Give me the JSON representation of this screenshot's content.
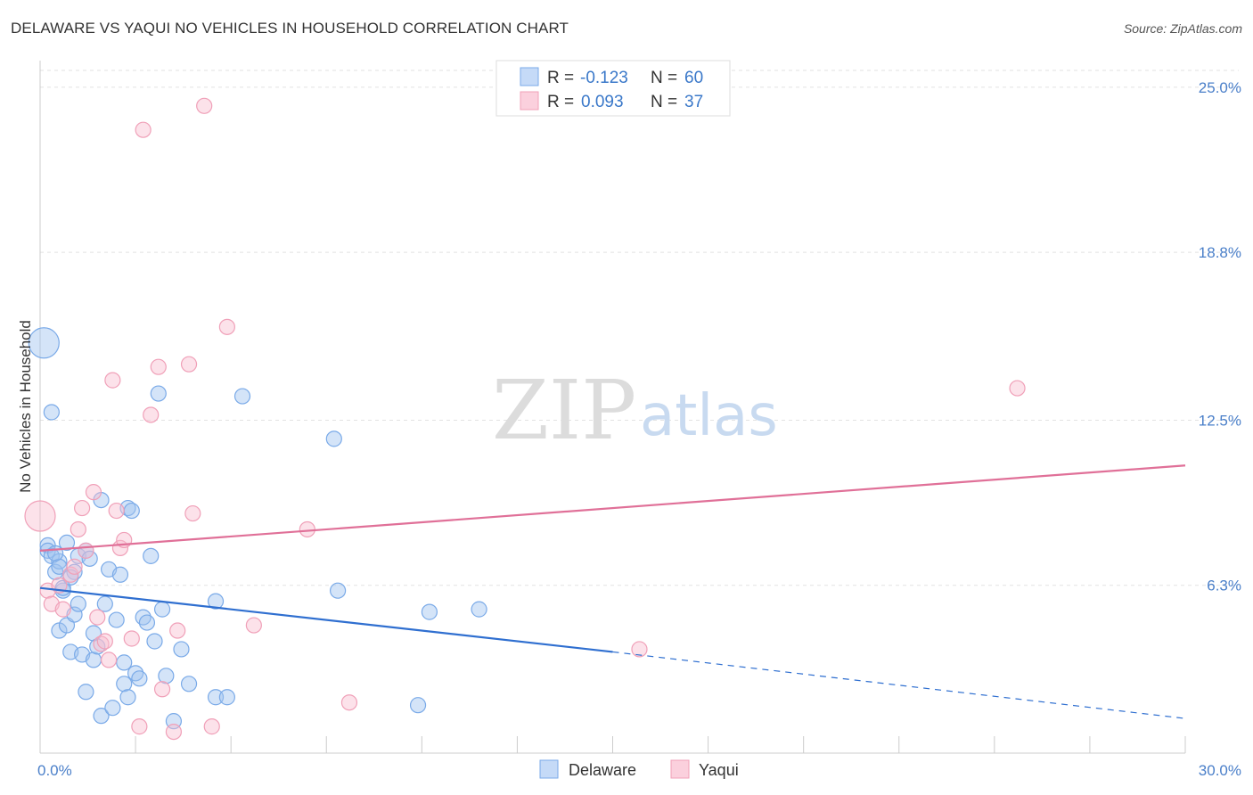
{
  "title": "DELAWARE VS YAQUI NO VEHICLES IN HOUSEHOLD CORRELATION CHART",
  "source": "Source: ZipAtlas.com",
  "watermark": {
    "zip": "ZIP",
    "atlas": "atlas"
  },
  "legend": {
    "rows": [
      {
        "r_label": "R =",
        "r_value": "-0.123",
        "n_label": "N =",
        "n_value": "60",
        "color": "#7aaae8"
      },
      {
        "r_label": "R =",
        "r_value": "0.093",
        "n_label": "N =",
        "n_value": "37",
        "color": "#f0a0b8"
      }
    ]
  },
  "bottom_legend": [
    {
      "label": "Delaware",
      "color": "#7aaae8"
    },
    {
      "label": "Yaqui",
      "color": "#f0a0b8"
    }
  ],
  "chart_data": {
    "type": "scatter",
    "title": "DELAWARE VS YAQUI NO VEHICLES IN HOUSEHOLD CORRELATION CHART",
    "xlabel": "",
    "ylabel": "No Vehicles in Household",
    "xlim": [
      0,
      30
    ],
    "ylim": [
      0,
      26
    ],
    "x_tick_labels": [
      {
        "value": 0,
        "label": "0.0%"
      },
      {
        "value": 30,
        "label": "30.0%"
      }
    ],
    "y_tick_labels": [
      {
        "value": 6.3,
        "label": "6.3%"
      },
      {
        "value": 12.5,
        "label": "12.5%"
      },
      {
        "value": 18.8,
        "label": "18.8%"
      },
      {
        "value": 25.0,
        "label": "25.0%"
      }
    ],
    "grid": true,
    "series": [
      {
        "name": "Delaware",
        "color": "#7aaae8",
        "line_color": "#2f6fd0",
        "trend": {
          "x0": 0,
          "y0": 6.2,
          "x1": 15,
          "y1": 3.8,
          "dash_x1": 30,
          "dash_y1": 1.3
        },
        "points": [
          [
            0.1,
            15.4,
            3
          ],
          [
            0.2,
            7.8,
            1
          ],
          [
            0.2,
            7.6,
            1
          ],
          [
            0.3,
            12.8,
            1
          ],
          [
            0.3,
            7.4,
            1
          ],
          [
            0.4,
            6.8,
            1
          ],
          [
            0.5,
            7.2,
            1
          ],
          [
            0.5,
            7.0,
            1
          ],
          [
            0.5,
            4.6,
            1
          ],
          [
            0.6,
            6.1,
            1
          ],
          [
            0.6,
            6.2,
            1
          ],
          [
            0.7,
            4.8,
            1
          ],
          [
            0.7,
            7.9,
            1
          ],
          [
            0.8,
            3.8,
            1
          ],
          [
            0.9,
            5.2,
            1
          ],
          [
            0.9,
            6.8,
            1
          ],
          [
            1.0,
            7.4,
            1
          ],
          [
            1.0,
            5.6,
            1
          ],
          [
            1.1,
            3.7,
            1
          ],
          [
            1.2,
            7.6,
            1
          ],
          [
            1.2,
            2.3,
            1
          ],
          [
            1.3,
            7.3,
            1
          ],
          [
            1.4,
            3.5,
            1
          ],
          [
            1.4,
            4.5,
            1
          ],
          [
            1.6,
            9.5,
            1
          ],
          [
            1.6,
            1.4,
            1
          ],
          [
            1.7,
            5.6,
            1
          ],
          [
            1.8,
            6.9,
            1
          ],
          [
            1.9,
            1.7,
            1
          ],
          [
            2.1,
            6.7,
            1
          ],
          [
            2.2,
            3.4,
            1
          ],
          [
            2.2,
            2.6,
            1
          ],
          [
            2.3,
            2.1,
            1
          ],
          [
            2.3,
            9.2,
            1
          ],
          [
            2.4,
            9.1,
            1
          ],
          [
            2.5,
            3.0,
            1
          ],
          [
            2.6,
            2.8,
            1
          ],
          [
            2.7,
            5.1,
            1
          ],
          [
            2.8,
            4.9,
            1
          ],
          [
            2.9,
            7.4,
            1
          ],
          [
            3.0,
            4.2,
            1
          ],
          [
            3.1,
            13.5,
            1
          ],
          [
            3.2,
            5.4,
            1
          ],
          [
            3.3,
            2.9,
            1
          ],
          [
            3.5,
            1.2,
            1
          ],
          [
            3.7,
            3.9,
            1
          ],
          [
            3.9,
            2.6,
            1
          ],
          [
            4.6,
            5.7,
            1
          ],
          [
            4.6,
            2.1,
            1
          ],
          [
            4.9,
            2.1,
            1
          ],
          [
            5.3,
            13.4,
            1
          ],
          [
            7.7,
            11.8,
            1
          ],
          [
            7.8,
            6.1,
            1
          ],
          [
            9.9,
            1.8,
            1
          ],
          [
            10.2,
            5.3,
            1
          ],
          [
            11.5,
            5.4,
            1
          ],
          [
            0.4,
            7.5,
            1
          ],
          [
            2.0,
            5.0,
            1
          ],
          [
            0.8,
            6.6,
            1
          ],
          [
            1.5,
            4.0,
            1
          ]
        ]
      },
      {
        "name": "Yaqui",
        "color": "#f0a0b8",
        "line_color": "#e07098",
        "trend": {
          "x0": 0,
          "y0": 7.6,
          "x1": 30,
          "y1": 10.8
        },
        "points": [
          [
            0.0,
            8.9,
            3
          ],
          [
            0.2,
            6.1,
            1
          ],
          [
            0.3,
            5.6,
            1
          ],
          [
            0.5,
            6.3,
            1
          ],
          [
            0.6,
            5.4,
            1
          ],
          [
            0.8,
            6.7,
            1
          ],
          [
            0.9,
            7.0,
            1
          ],
          [
            1.0,
            8.4,
            1
          ],
          [
            1.1,
            9.2,
            1
          ],
          [
            1.2,
            7.6,
            1
          ],
          [
            1.4,
            9.8,
            1
          ],
          [
            1.5,
            5.1,
            1
          ],
          [
            1.6,
            4.1,
            1
          ],
          [
            1.7,
            4.2,
            1
          ],
          [
            1.8,
            3.5,
            1
          ],
          [
            1.9,
            14.0,
            1
          ],
          [
            2.0,
            9.1,
            1
          ],
          [
            2.1,
            7.7,
            1
          ],
          [
            2.2,
            8.0,
            1
          ],
          [
            2.4,
            4.3,
            1
          ],
          [
            2.6,
            1.0,
            1
          ],
          [
            2.7,
            23.4,
            1
          ],
          [
            2.9,
            12.7,
            1
          ],
          [
            3.1,
            14.5,
            1
          ],
          [
            3.2,
            2.4,
            1
          ],
          [
            3.5,
            0.8,
            1
          ],
          [
            3.6,
            4.6,
            1
          ],
          [
            3.9,
            14.6,
            1
          ],
          [
            4.0,
            9.0,
            1
          ],
          [
            4.3,
            24.3,
            1
          ],
          [
            4.5,
            1.0,
            1
          ],
          [
            4.9,
            16.0,
            1
          ],
          [
            5.6,
            4.8,
            1
          ],
          [
            7.0,
            8.4,
            1
          ],
          [
            8.1,
            1.9,
            1
          ],
          [
            15.7,
            3.9,
            1
          ],
          [
            25.6,
            13.7,
            1
          ]
        ]
      }
    ]
  }
}
